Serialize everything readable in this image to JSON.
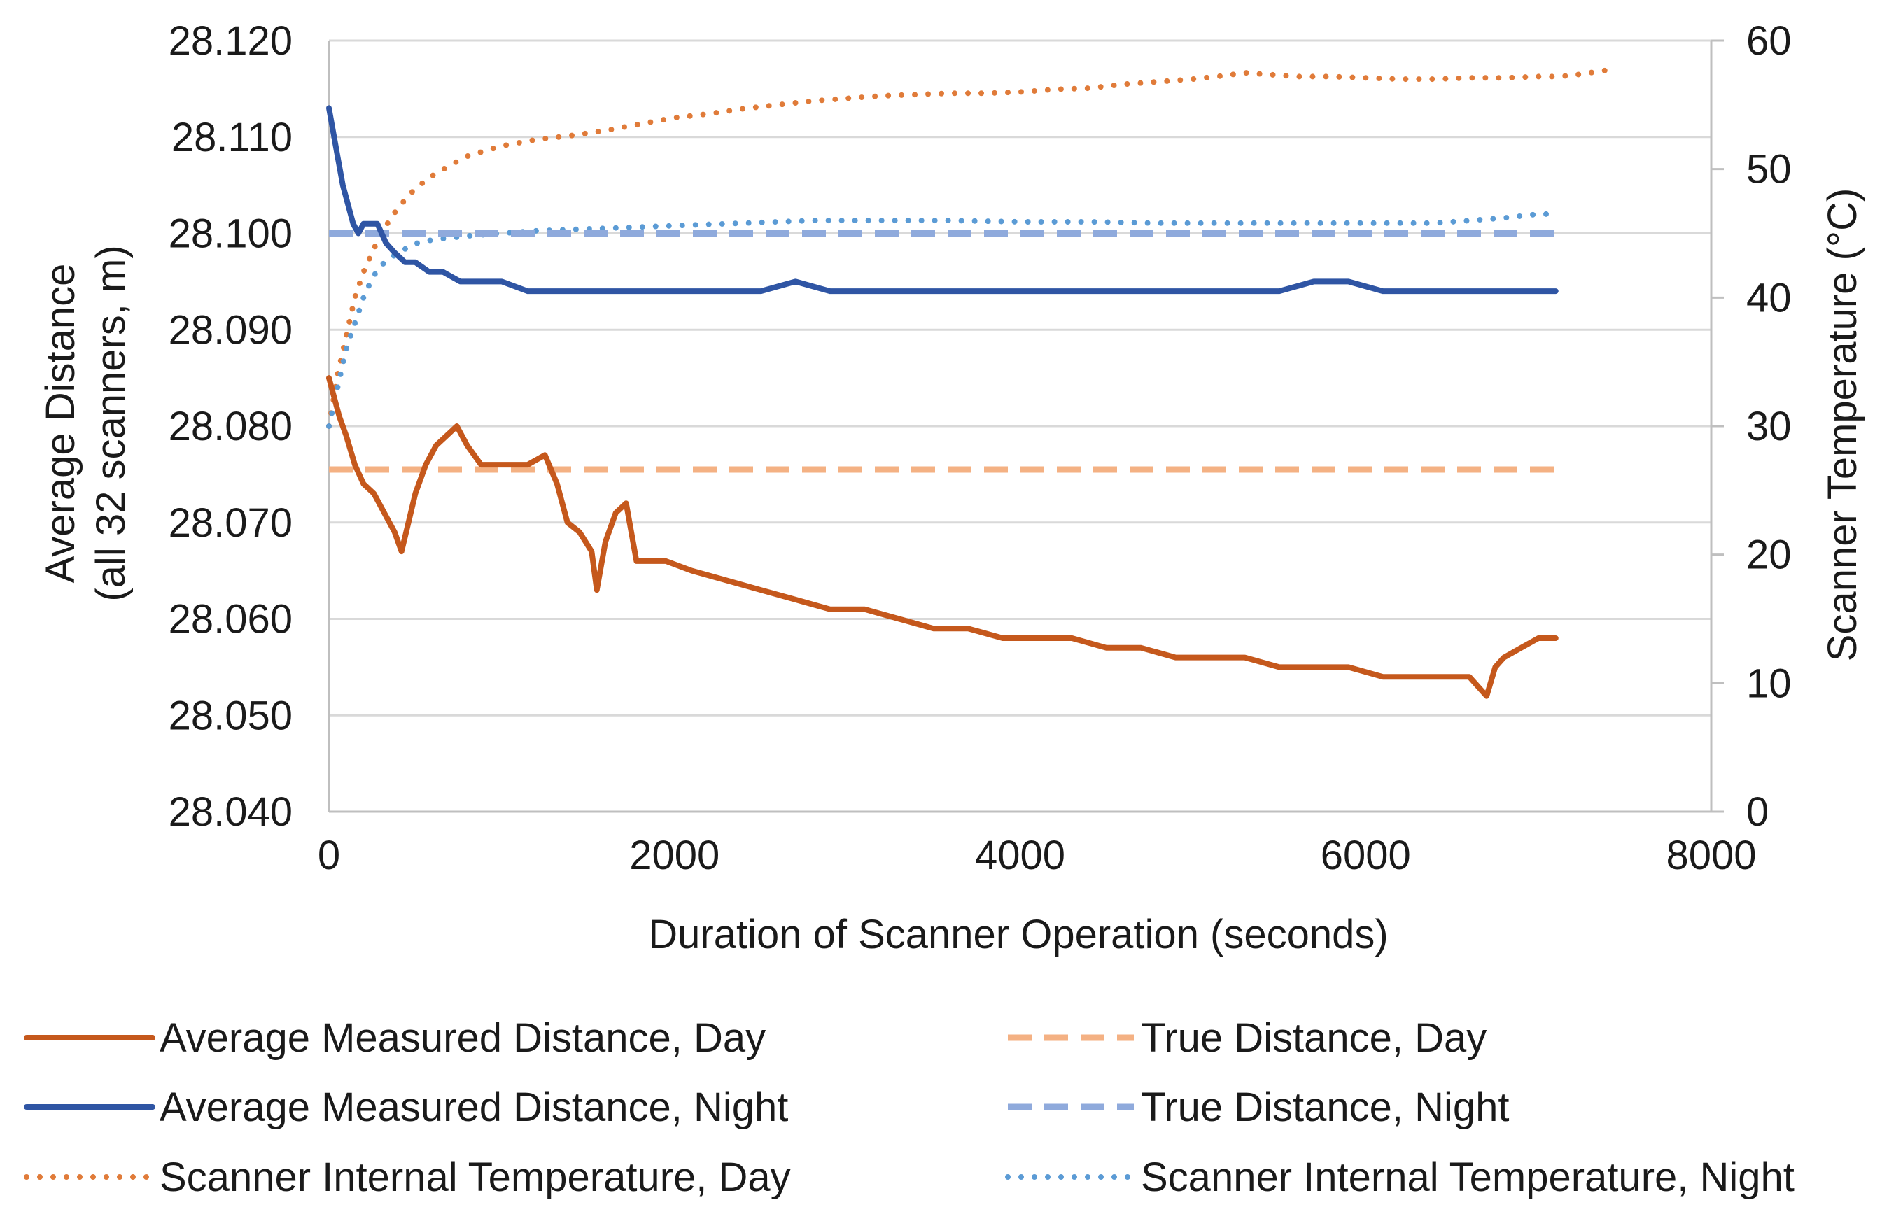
{
  "chart_data": {
    "type": "line",
    "title": "",
    "xlabel": "Duration of Scanner Operation (seconds)",
    "ylabel_left": [
      "Average Distance",
      "(all 32 scanners, m)"
    ],
    "ylabel_right": "Scanner Temperature (°C)",
    "xlim": [
      0,
      8000
    ],
    "ylim_left": [
      28.04,
      28.12
    ],
    "ylim_right": [
      0,
      60
    ],
    "x_ticks": [
      "0",
      "2000",
      "4000",
      "6000",
      "8000"
    ],
    "x_tick_values": [
      0,
      2000,
      4000,
      6000,
      8000
    ],
    "y_left_ticks": [
      "28.040",
      "28.050",
      "28.060",
      "28.070",
      "28.080",
      "28.090",
      "28.100",
      "28.110",
      "28.120"
    ],
    "y_left_tick_values": [
      28.04,
      28.05,
      28.06,
      28.07,
      28.08,
      28.09,
      28.1,
      28.11,
      28.12
    ],
    "y_right_ticks": [
      "0",
      "10",
      "20",
      "30",
      "40",
      "50",
      "60"
    ],
    "y_right_tick_values": [
      0,
      10,
      20,
      30,
      40,
      50,
      60
    ],
    "grid": true,
    "legend_position": "bottom",
    "series": [
      {
        "name": "Average Measured Distance, Day",
        "axis": "left",
        "style": "solid",
        "color": "#C5581C",
        "x": [
          0,
          30,
          60,
          100,
          150,
          200,
          260,
          320,
          380,
          420,
          460,
          500,
          560,
          620,
          680,
          740,
          800,
          880,
          960,
          1050,
          1150,
          1250,
          1320,
          1380,
          1450,
          1520,
          1550,
          1600,
          1660,
          1720,
          1780,
          1850,
          1950,
          2100,
          2300,
          2500,
          2700,
          2900,
          3100,
          3300,
          3500,
          3700,
          3900,
          4100,
          4300,
          4500,
          4700,
          4900,
          5100,
          5300,
          5500,
          5700,
          5900,
          6100,
          6300,
          6500,
          6600,
          6650,
          6700,
          6750,
          6800,
          6900,
          7000,
          7100
        ],
        "values": [
          28.085,
          28.083,
          28.081,
          28.079,
          28.076,
          28.074,
          28.073,
          28.071,
          28.069,
          28.067,
          28.07,
          28.073,
          28.076,
          28.078,
          28.079,
          28.08,
          28.078,
          28.076,
          28.076,
          28.076,
          28.076,
          28.077,
          28.074,
          28.07,
          28.069,
          28.067,
          28.063,
          28.068,
          28.071,
          28.072,
          28.066,
          28.066,
          28.066,
          28.065,
          28.064,
          28.063,
          28.062,
          28.061,
          28.061,
          28.06,
          28.059,
          28.059,
          28.058,
          28.058,
          28.058,
          28.057,
          28.057,
          28.056,
          28.056,
          28.056,
          28.055,
          28.055,
          28.055,
          28.054,
          28.054,
          28.054,
          28.054,
          28.053,
          28.052,
          28.055,
          28.056,
          28.057,
          28.058,
          28.058
        ]
      },
      {
        "name": "True Distance, Day",
        "axis": "left",
        "style": "dashed",
        "color": "#F4B183",
        "x": [
          0,
          7100
        ],
        "values": [
          28.0755,
          28.0755
        ]
      },
      {
        "name": "Average Measured Distance, Night",
        "axis": "left",
        "style": "solid",
        "color": "#2F55A4",
        "x": [
          0,
          20,
          50,
          80,
          110,
          140,
          170,
          200,
          240,
          280,
          330,
          380,
          440,
          500,
          580,
          660,
          760,
          880,
          1000,
          1150,
          1300,
          1500,
          1700,
          1900,
          2100,
          2300,
          2500,
          2700,
          2900,
          3100,
          3300,
          3500,
          3700,
          3900,
          4100,
          4300,
          4500,
          4700,
          4900,
          5100,
          5300,
          5500,
          5700,
          5900,
          6100,
          6300,
          6500,
          6700,
          6900,
          7100
        ],
        "values": [
          28.113,
          28.111,
          28.108,
          28.105,
          28.103,
          28.101,
          28.1,
          28.101,
          28.101,
          28.101,
          28.099,
          28.098,
          28.097,
          28.097,
          28.096,
          28.096,
          28.095,
          28.095,
          28.095,
          28.094,
          28.094,
          28.094,
          28.094,
          28.094,
          28.094,
          28.094,
          28.094,
          28.095,
          28.094,
          28.094,
          28.094,
          28.094,
          28.094,
          28.094,
          28.094,
          28.094,
          28.094,
          28.094,
          28.094,
          28.094,
          28.094,
          28.094,
          28.095,
          28.095,
          28.094,
          28.094,
          28.094,
          28.094,
          28.094,
          28.094
        ]
      },
      {
        "name": "True Distance, Night",
        "axis": "left",
        "style": "dashed",
        "color": "#8FAADC",
        "x": [
          0,
          7100
        ],
        "values": [
          28.1,
          28.1
        ]
      },
      {
        "name": "Scanner Internal Temperature, Day",
        "axis": "right",
        "style": "dotted",
        "color": "#E07B39",
        "x": [
          0,
          50,
          100,
          150,
          200,
          300,
          400,
          500,
          600,
          700,
          800,
          1000,
          1200,
          1400,
          1600,
          1800,
          2000,
          2200,
          2400,
          2600,
          2800,
          3000,
          3200,
          3400,
          3600,
          3800,
          4000,
          4200,
          4400,
          4600,
          4800,
          5000,
          5200,
          5300,
          5400,
          5600,
          5800,
          6000,
          6200,
          6400,
          6600,
          6800,
          7000,
          7100,
          7200,
          7300,
          7400
        ],
        "values": [
          30,
          34,
          37,
          40,
          42,
          45,
          47,
          48.5,
          49.5,
          50.3,
          51,
          51.8,
          52.3,
          52.6,
          53,
          53.5,
          54,
          54.3,
          54.7,
          55,
          55.3,
          55.5,
          55.7,
          55.8,
          55.9,
          55.9,
          56,
          56.2,
          56.3,
          56.6,
          56.8,
          57,
          57.3,
          57.5,
          57.4,
          57.2,
          57.2,
          57.1,
          57,
          57,
          57.1,
          57.1,
          57.2,
          57.2,
          57.3,
          57.5,
          57.7
        ]
      },
      {
        "name": "Scanner Internal Temperature, Night",
        "axis": "right",
        "style": "dotted",
        "color": "#5B9BD5",
        "x": [
          0,
          50,
          100,
          150,
          200,
          250,
          300,
          400,
          500,
          600,
          800,
          1000,
          1200,
          1400,
          1600,
          2000,
          2400,
          2800,
          3200,
          3600,
          4000,
          4400,
          4800,
          5200,
          5600,
          6000,
          6400,
          6800,
          7000,
          7100
        ],
        "values": [
          30,
          33,
          36,
          38,
          40,
          41.5,
          42.5,
          43.5,
          44.2,
          44.5,
          44.8,
          45,
          45.2,
          45.3,
          45.4,
          45.6,
          45.8,
          46,
          46,
          46,
          45.9,
          45.9,
          45.8,
          45.8,
          45.8,
          45.8,
          45.8,
          46.2,
          46.5,
          46.5
        ]
      }
    ]
  }
}
